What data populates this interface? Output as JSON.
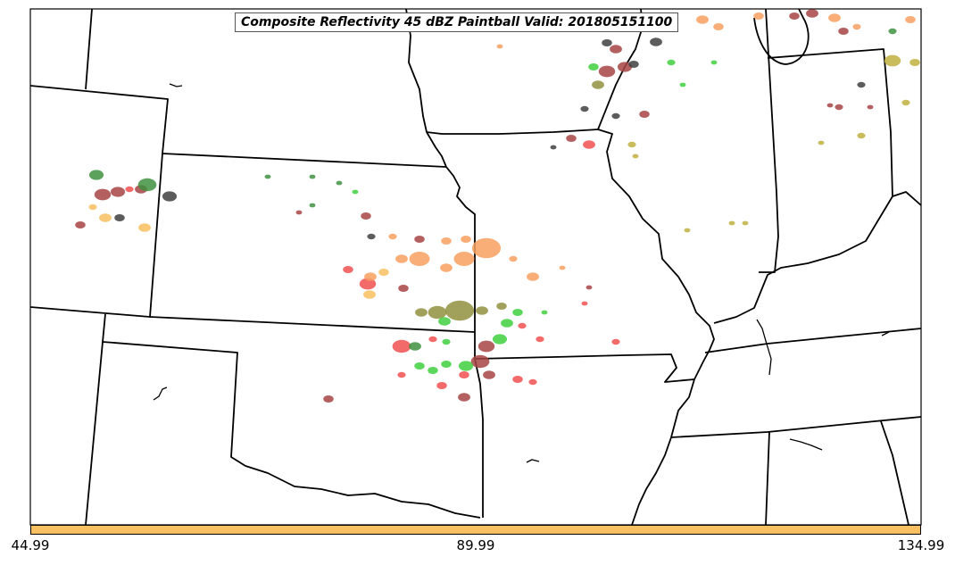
{
  "title": "Composite Reflectivity 45 dBZ Paintball Valid: 201805151100",
  "colorbar": {
    "color": "#f8c060",
    "ticks": [
      "44.99",
      "89.99",
      "134.99"
    ]
  },
  "palette": {
    "dark_red": "#a84444",
    "red": "#f05050",
    "orange": "#f8a060",
    "light_orange": "#f8c060",
    "green": "#40d040",
    "dark_green": "#409040",
    "olive": "#909040",
    "yellow_olive": "#c0b040",
    "gray": "#404040"
  },
  "basemap": {
    "border_color": "#000000",
    "background": "#ffffff"
  }
}
